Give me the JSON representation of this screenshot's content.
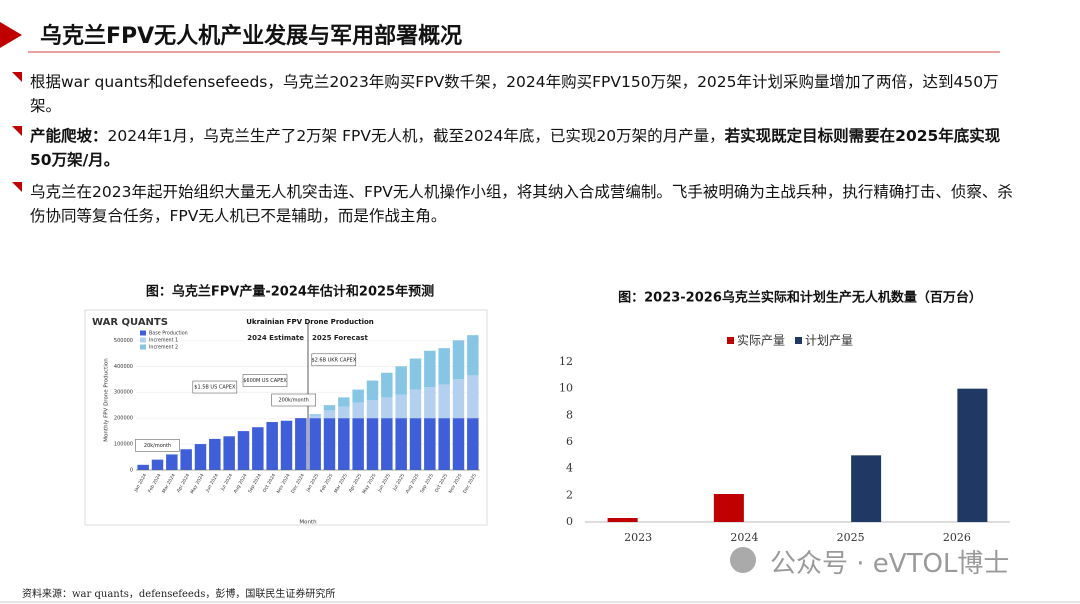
{
  "header": {
    "title": "乌克兰FPV无人机产业发展与军用部署概况"
  },
  "bullets": [
    {
      "segments": [
        {
          "text": "根据war quants和defensefeeds，乌克兰2023年购买FPV数千架，2024年购买FPV150万架，2025年计划采购量增加了两倍，达到450万架。",
          "bold": false
        }
      ]
    },
    {
      "segments": [
        {
          "text": "产能爬坡：",
          "bold": true
        },
        {
          "text": "2024年1月，乌克兰生产了2万架 FPV无人机，截至2024年底，已实现20万架的月产量，",
          "bold": false
        },
        {
          "text": "若实现既定目标则需要在2025年底实现50万架/月。",
          "bold": true
        }
      ]
    },
    {
      "segments": [
        {
          "text": "乌克兰在2023年起开始组织大量无人机突击连、FPV无人机操作小组，将其纳入合成营编制。飞手被明确为主战兵种，执行精确打击、侦察、杀伤协同等复合任务，FPV无人机已不是辅助，而是作战主角。",
          "bold": false
        }
      ]
    }
  ],
  "chart_data": [
    {
      "type": "bar",
      "stacked": true,
      "title": "图：乌克兰FPV产量-2024年估计和2025年预测",
      "subtitle": "Ukrainian FPV Drone Production",
      "brand": "WAR QUANTS",
      "sections": [
        "2024 Estimate",
        "2025 Forecast"
      ],
      "annotations": [
        "20k/month",
        "$1.5B US CAPEX",
        "$600M US CAPEX",
        "200k/month",
        "$2.6B UKR CAPEX"
      ],
      "xlabel": "Month",
      "ylabel": "Monthly FPV Drone Production",
      "categories": [
        "Jan 2024",
        "Feb 2024",
        "Mar 2024",
        "Apr 2024",
        "May 2024",
        "Jun 2024",
        "Jul 2024",
        "Aug 2024",
        "Sep 2024",
        "Oct 2024",
        "Nov 2024",
        "Dec 2024",
        "Jan 2025",
        "Feb 2025",
        "Mar 2025",
        "Apr 2025",
        "May 2025",
        "Jun 2025",
        "Jul 2025",
        "Aug 2025",
        "Sep 2025",
        "Oct 2025",
        "Nov 2025",
        "Dec 2025"
      ],
      "series": [
        {
          "name": "Base Production",
          "color": "#3f5fd8",
          "values": [
            20000,
            40000,
            60000,
            80000,
            100000,
            120000,
            130000,
            150000,
            165000,
            185000,
            190000,
            200000,
            200000,
            200000,
            200000,
            200000,
            200000,
            200000,
            200000,
            200000,
            200000,
            200000,
            200000,
            200000
          ]
        },
        {
          "name": "Increment 1",
          "color": "#b3d1ee",
          "values": [
            null,
            null,
            null,
            null,
            null,
            null,
            null,
            null,
            null,
            null,
            null,
            null,
            10000,
            30000,
            45000,
            60000,
            70000,
            80000,
            90000,
            110000,
            120000,
            130000,
            150000,
            165000
          ]
        },
        {
          "name": "Increment 2",
          "color": "#86c6e4",
          "values": [
            null,
            null,
            null,
            null,
            null,
            null,
            null,
            null,
            null,
            null,
            null,
            null,
            5000,
            20000,
            35000,
            50000,
            75000,
            95000,
            110000,
            120000,
            140000,
            140000,
            150000,
            155000
          ]
        }
      ],
      "ylim": [
        0,
        540000
      ],
      "yticks": [
        0,
        100000,
        200000,
        300000,
        400000,
        500000
      ],
      "legend": "upper left"
    },
    {
      "type": "bar",
      "stacked": false,
      "title": "图：2023-2026乌克兰实际和计划生产无人机数量（百万台）",
      "categories": [
        "2023",
        "2024",
        "2025",
        "2026"
      ],
      "series": [
        {
          "name": "实际产量",
          "color": "#c00000",
          "values": [
            0.3,
            2.1,
            null,
            null
          ]
        },
        {
          "name": "计划产量",
          "color": "#1f3864",
          "values": [
            null,
            null,
            5,
            10
          ]
        }
      ],
      "ylim": [
        0,
        12
      ],
      "yticks": [
        0,
        2,
        4,
        6,
        8,
        10,
        12
      ],
      "legend": "upper center"
    }
  ],
  "watermark": "公众号 · eVTOL博士",
  "source": "资料来源：war quants，defensefeeds，彭博，国联民生证券研究所"
}
